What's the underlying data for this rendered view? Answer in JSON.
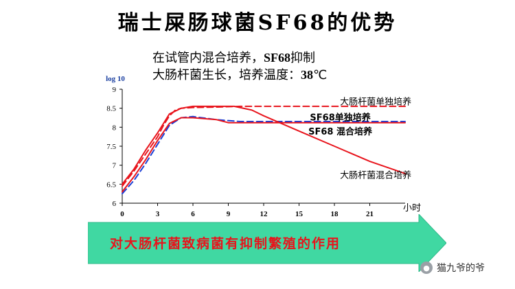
{
  "slide": {
    "title": "瑞士屎肠球菌SF68的优势",
    "subtitle_line1_pre": "在试管内混合培养，",
    "subtitle_line1_bold": "SF68",
    "subtitle_line1_post": "抑制",
    "subtitle_line2_pre": "大肠杆菌生长，培养温度：",
    "subtitle_line2_bold": "38",
    "subtitle_line2_post": "℃",
    "arrow_text": "对大肠杆菌致病菌有抑制繁殖的作用",
    "watermark": "猫九爷的爷",
    "watermark_icon": "wechat-icon"
  },
  "chart_data": {
    "type": "line",
    "ylabel": "log 10",
    "xlabel": "小时",
    "xlim": [
      0,
      24
    ],
    "ylim": [
      6,
      9
    ],
    "x_ticks": [
      "0",
      "3",
      "6",
      "9",
      "12",
      "15",
      "18",
      "21"
    ],
    "y_ticks": [
      "6",
      "6.5",
      "7",
      "7.5",
      "8",
      "8.5",
      "9"
    ],
    "grid": false,
    "series": [
      {
        "name": "大肠杆菌单独培养",
        "color": "#e8141c",
        "dash": true,
        "x": [
          0,
          1,
          2,
          3,
          3.5,
          4,
          4.5,
          5,
          6,
          8,
          10,
          12,
          15,
          18,
          21,
          24
        ],
        "y": [
          6.45,
          6.85,
          7.3,
          7.75,
          8.05,
          8.3,
          8.45,
          8.5,
          8.52,
          8.53,
          8.55,
          8.55,
          8.55,
          8.55,
          8.55,
          8.55
        ]
      },
      {
        "name": "SF68单独培养",
        "color": "#1a3fd6",
        "dash": true,
        "x": [
          0,
          1,
          2,
          3,
          4,
          5,
          6,
          8,
          10,
          12,
          15,
          18,
          21,
          24
        ],
        "y": [
          6.25,
          6.6,
          7.05,
          7.55,
          8.05,
          8.25,
          8.28,
          8.2,
          8.15,
          8.15,
          8.15,
          8.15,
          8.15,
          8.15
        ]
      },
      {
        "name": "SF68 混合培养",
        "color": "#e8141c",
        "dash": false,
        "x": [
          0,
          1,
          2,
          3,
          4,
          5,
          6,
          8,
          9,
          12,
          15,
          18,
          21,
          24
        ],
        "y": [
          6.3,
          6.7,
          7.15,
          7.65,
          8.1,
          8.25,
          8.25,
          8.2,
          8.12,
          8.12,
          8.12,
          8.12,
          8.12,
          8.12
        ]
      },
      {
        "name": "大肠杆菌混合培养",
        "color": "#e8141c",
        "dash": false,
        "x": [
          0,
          1,
          2,
          3,
          4,
          5,
          6,
          8,
          9.5,
          11,
          12,
          15,
          18,
          21,
          24
        ],
        "y": [
          6.5,
          6.9,
          7.4,
          7.85,
          8.35,
          8.5,
          8.55,
          8.55,
          8.55,
          8.45,
          8.3,
          7.9,
          7.5,
          7.1,
          6.78
        ]
      }
    ],
    "labels": [
      {
        "text": "大肠杆菌单独培养",
        "x": 21.5,
        "y": 8.68,
        "bold": false
      },
      {
        "text": "SF68单独培养",
        "x": 18.5,
        "y": 8.27,
        "bold": true
      },
      {
        "text": "SF68 混合培养",
        "x": 18.5,
        "y": 7.9,
        "bold": true
      },
      {
        "text": "大肠杆菌混合培养",
        "x": 21.5,
        "y": 6.75,
        "bold": false
      }
    ]
  }
}
